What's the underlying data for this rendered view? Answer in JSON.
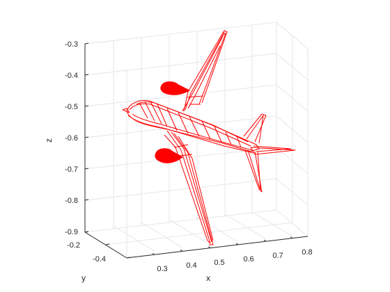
{
  "chart_data": {
    "type": "3d-wireframe",
    "xlabel": "x",
    "ylabel": "y",
    "zlabel": "z",
    "x_ticks": [
      "0.3",
      "0.4",
      "0.5",
      "0.6",
      "0.7",
      "0.8"
    ],
    "y_ticks": [
      "-0.2",
      "-0.4"
    ],
    "z_ticks": [
      "-0.3",
      "-0.4",
      "-0.5",
      "-0.6",
      "-0.7",
      "-0.8",
      "-0.9"
    ],
    "xlim": [
      0.25,
      0.85
    ],
    "ylim": [
      -0.5,
      -0.2
    ],
    "zlim": [
      -0.9,
      -0.3
    ],
    "grid": true,
    "color": "#ff0000"
  }
}
